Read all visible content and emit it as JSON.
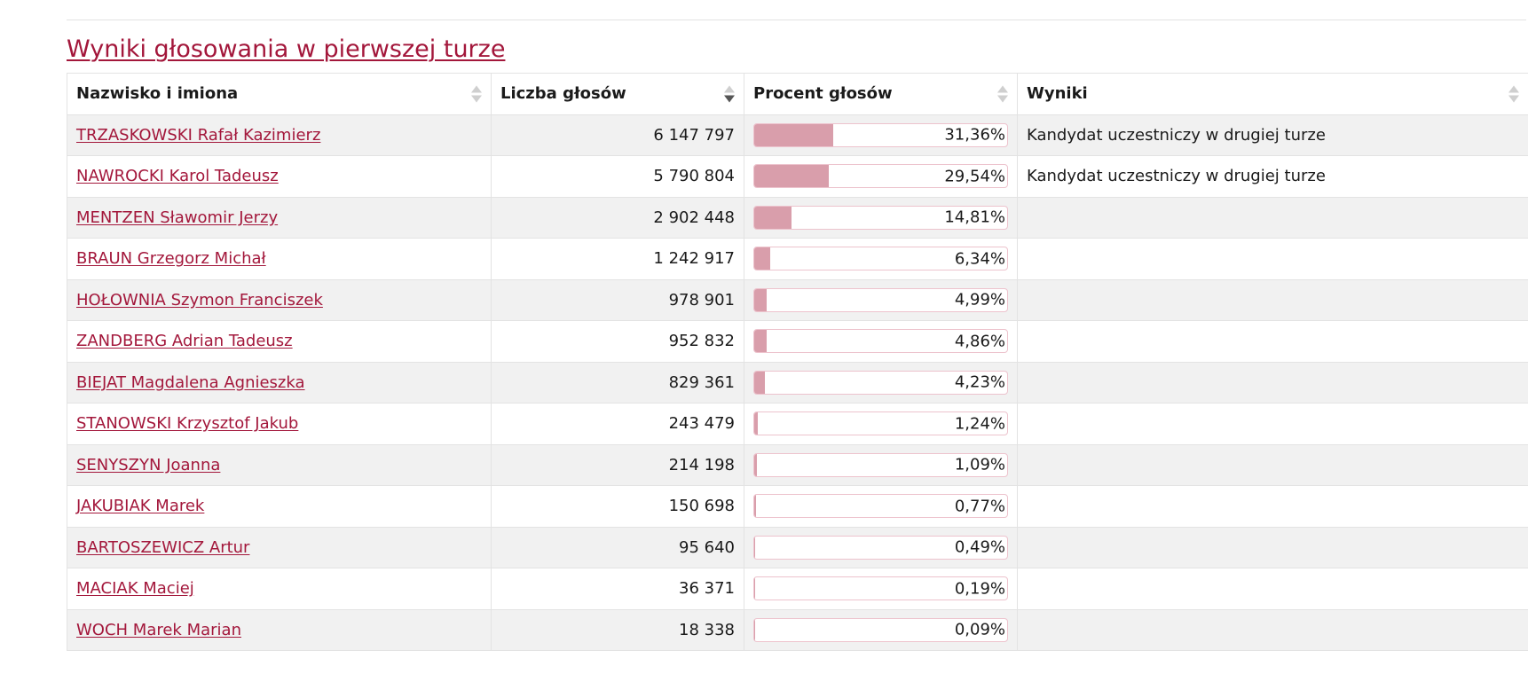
{
  "section": {
    "title": "Wyniki głosowania w pierwszej turze"
  },
  "table": {
    "headers": {
      "name": "Nazwisko i imiona",
      "votes": "Liczba głosów",
      "percent": "Procent głosów",
      "results": "Wyniki"
    },
    "sort": {
      "column": "votes",
      "direction": "descending"
    },
    "rows": [
      {
        "name": "TRZASKOWSKI Rafał Kazimierz",
        "votes": "6 147 797",
        "percent": "31,36%",
        "pct_value": 31.36,
        "result": "Kandydat uczestniczy w drugiej turze"
      },
      {
        "name": "NAWROCKI Karol Tadeusz",
        "votes": "5 790 804",
        "percent": "29,54%",
        "pct_value": 29.54,
        "result": "Kandydat uczestniczy w drugiej turze"
      },
      {
        "name": "MENTZEN Sławomir Jerzy",
        "votes": "2 902 448",
        "percent": "14,81%",
        "pct_value": 14.81,
        "result": ""
      },
      {
        "name": "BRAUN Grzegorz Michał",
        "votes": "1 242 917",
        "percent": "6,34%",
        "pct_value": 6.34,
        "result": ""
      },
      {
        "name": "HOŁOWNIA Szymon Franciszek",
        "votes": "978 901",
        "percent": "4,99%",
        "pct_value": 4.99,
        "result": ""
      },
      {
        "name": "ZANDBERG Adrian Tadeusz",
        "votes": "952 832",
        "percent": "4,86%",
        "pct_value": 4.86,
        "result": ""
      },
      {
        "name": "BIEJAT Magdalena Agnieszka",
        "votes": "829 361",
        "percent": "4,23%",
        "pct_value": 4.23,
        "result": ""
      },
      {
        "name": "STANOWSKI Krzysztof Jakub",
        "votes": "243 479",
        "percent": "1,24%",
        "pct_value": 1.24,
        "result": ""
      },
      {
        "name": "SENYSZYN Joanna",
        "votes": "214 198",
        "percent": "1,09%",
        "pct_value": 1.09,
        "result": ""
      },
      {
        "name": "JAKUBIAK Marek",
        "votes": "150 698",
        "percent": "0,77%",
        "pct_value": 0.77,
        "result": ""
      },
      {
        "name": "BARTOSZEWICZ Artur",
        "votes": "95 640",
        "percent": "0,49%",
        "pct_value": 0.49,
        "result": ""
      },
      {
        "name": "MACIAK Maciej",
        "votes": "36 371",
        "percent": "0,19%",
        "pct_value": 0.19,
        "result": ""
      },
      {
        "name": "WOCH Marek Marian",
        "votes": "18 338",
        "percent": "0,09%",
        "pct_value": 0.09,
        "result": ""
      }
    ]
  },
  "colors": {
    "accent": "#a3173b",
    "bar_fill": "#d99eab",
    "bar_border": "#edc3cd",
    "row_stripe": "#f1f1f1"
  }
}
